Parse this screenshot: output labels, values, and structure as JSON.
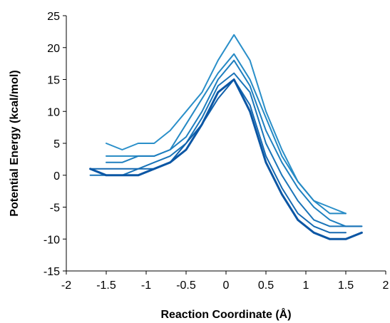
{
  "chart_data": {
    "type": "line",
    "title": "",
    "xlabel": "Reaction Coordinate (Å)",
    "ylabel": "Potential Energy (kcal/mol)",
    "xlim": [
      -2,
      2
    ],
    "ylim": [
      -15,
      25
    ],
    "xticks": [
      -2,
      -1.5,
      -1,
      -0.5,
      0,
      0.5,
      1,
      1.5,
      2
    ],
    "xtick_labels": [
      "-2",
      "-1.5",
      "-1",
      "-0.5",
      "0",
      "0.5",
      "1",
      "1.5",
      "2"
    ],
    "yticks": [
      -15,
      -10,
      -5,
      0,
      5,
      10,
      15,
      20,
      25
    ],
    "ytick_labels": [
      "-15",
      "-10",
      "-5",
      "0",
      "5",
      "10",
      "15",
      "20",
      "25"
    ],
    "grid": false,
    "legend": "none",
    "colors": [
      "#2a8fc9",
      "#2589c4",
      "#1f7fbf",
      "#1a74b8",
      "#1569b1",
      "#1060ab",
      "#0b56a4"
    ],
    "series": [
      {
        "x": [
          -1.5,
          -1.3,
          -1.1,
          -0.9,
          -0.7,
          -0.5,
          -0.3,
          -0.1,
          0.1,
          0.3,
          0.5,
          0.7,
          0.9,
          1.1,
          1.3,
          1.5
        ],
        "y": [
          5,
          4,
          5,
          5,
          7,
          10,
          13,
          18,
          22,
          18,
          10,
          4,
          -1,
          -4,
          -5,
          -6
        ]
      },
      {
        "x": [
          -1.5,
          -1.3,
          -1.1,
          -0.9,
          -0.7,
          -0.5,
          -0.3,
          -0.1,
          0.1,
          0.3,
          0.5,
          0.7,
          0.9,
          1.1,
          1.3,
          1.5
        ],
        "y": [
          3,
          3,
          3,
          3,
          4,
          8,
          12,
          16,
          19,
          15,
          9,
          3,
          -1,
          -4,
          -6,
          -6
        ]
      },
      {
        "x": [
          -1.5,
          -1.3,
          -1.1,
          -0.9,
          -0.7,
          -0.5,
          -0.3,
          -0.1,
          0.1,
          0.3,
          0.5,
          0.7,
          0.9,
          1.1,
          1.3,
          1.5,
          1.7
        ],
        "y": [
          2,
          2,
          3,
          3,
          4,
          6,
          10,
          15,
          18,
          14,
          7,
          2,
          -2,
          -5,
          -7,
          -8,
          -8
        ]
      },
      {
        "x": [
          -1.7,
          -1.5,
          -1.3,
          -1.1,
          -0.9,
          -0.7,
          -0.5,
          -0.3,
          -0.1,
          0.1,
          0.3,
          0.5,
          0.7,
          0.9,
          1.1,
          1.3,
          1.5,
          1.7
        ],
        "y": [
          0,
          0,
          0,
          1,
          2,
          3,
          5,
          9,
          14,
          16,
          13,
          5,
          0,
          -4,
          -7,
          -8,
          -8,
          -8
        ]
      },
      {
        "x": [
          -1.7,
          -1.5,
          -1.3,
          -1.1,
          -0.9,
          -0.7,
          -0.5,
          -0.3,
          -0.1,
          0.1,
          0.3,
          0.5,
          0.7,
          0.9,
          1.1,
          1.3,
          1.5
        ],
        "y": [
          1,
          1,
          1,
          1,
          1,
          2,
          4,
          8,
          13,
          15,
          11,
          3,
          -2,
          -6,
          -8,
          -9,
          -9
        ]
      },
      {
        "x": [
          -1.7,
          -1.5,
          -1.3,
          -1.1,
          -0.9,
          -0.7,
          -0.5,
          -0.3,
          -0.1,
          0.1,
          0.3,
          0.5,
          0.7,
          0.9,
          1.1,
          1.3,
          1.5
        ],
        "y": [
          1,
          0,
          0,
          0,
          1,
          2,
          5,
          8,
          12,
          15,
          10,
          2,
          -3,
          -7,
          -9,
          -10,
          -10
        ]
      },
      {
        "x": [
          -1.7,
          -1.5,
          -1.3,
          -1.1,
          -0.9,
          -0.7,
          -0.5,
          -0.3,
          -0.1,
          0.1,
          0.3,
          0.5,
          0.7,
          0.9,
          1.1,
          1.3,
          1.5,
          1.7
        ],
        "y": [
          1,
          0,
          0,
          0,
          1,
          2,
          4,
          8,
          13,
          15,
          10,
          2,
          -3,
          -7,
          -9,
          -10,
          -10,
          -9
        ]
      }
    ]
  }
}
